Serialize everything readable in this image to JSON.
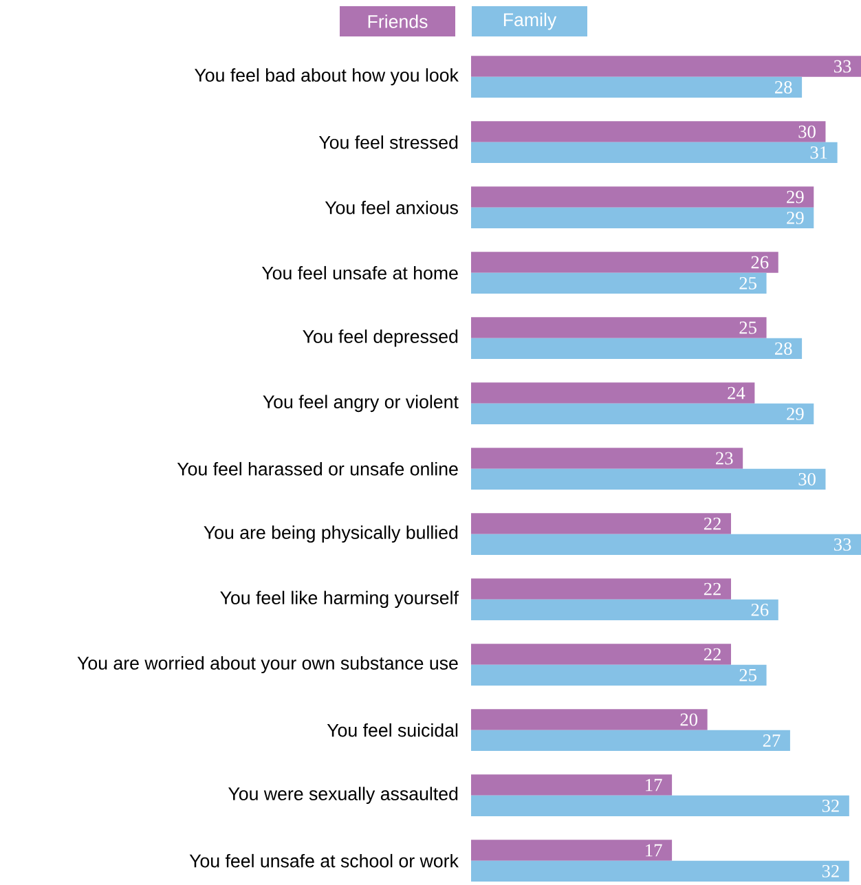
{
  "chart_data": {
    "type": "bar",
    "orientation": "horizontal",
    "data_labels": true,
    "legend": "top",
    "categories": [
      "You feel bad about how you look",
      "You feel stressed",
      "You feel anxious",
      "You feel unsafe at home",
      "You feel depressed",
      "You feel angry or violent",
      "You feel harassed or unsafe online",
      "You are being physically bullied",
      "You feel like harming yourself",
      "You are worried about your own substance use",
      "You feel suicidal",
      "You were sexually assaulted",
      "You feel unsafe at school or work"
    ],
    "series": [
      {
        "name": "Friends",
        "color": "#ae73b1",
        "values": [
          33,
          30,
          29,
          26,
          25,
          24,
          23,
          22,
          22,
          22,
          20,
          17,
          17
        ]
      },
      {
        "name": "Family",
        "color": "#85c1e6",
        "values": [
          28,
          31,
          29,
          25,
          28,
          29,
          30,
          33,
          26,
          25,
          27,
          32,
          32
        ]
      }
    ]
  }
}
